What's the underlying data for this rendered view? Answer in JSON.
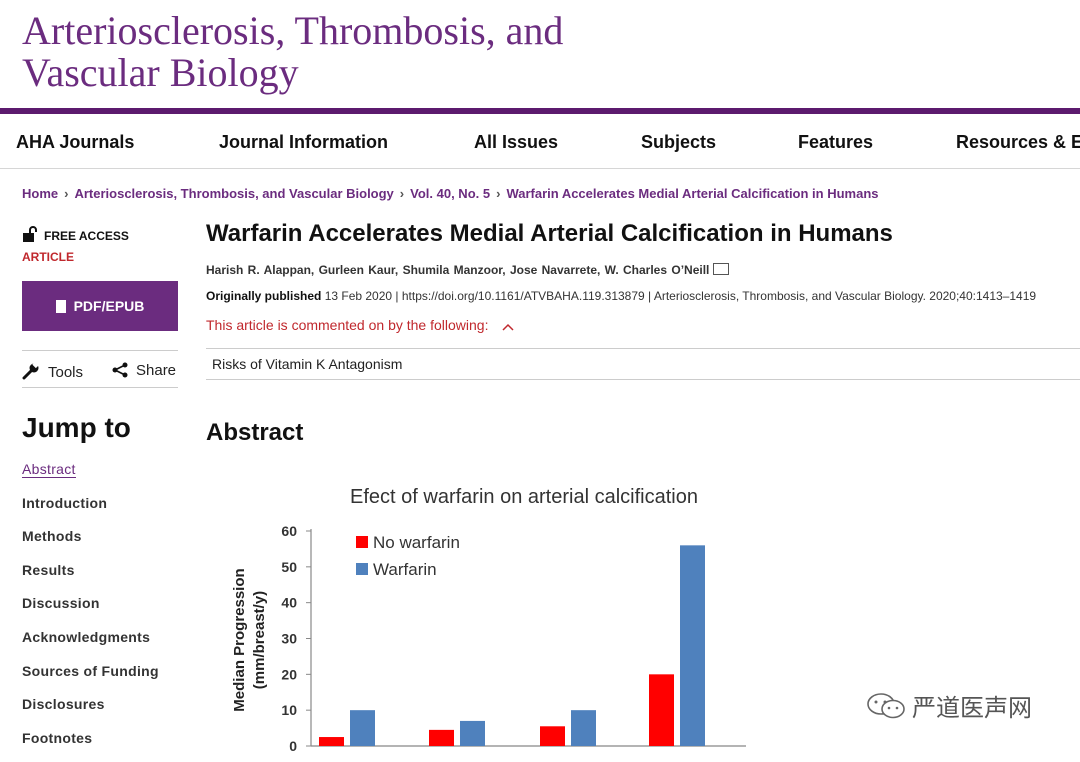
{
  "journal": {
    "title_line1": "Arteriosclerosis, Thrombosis, and",
    "title_line2": "Vascular Biology",
    "brand_color": "#6b2c7f"
  },
  "nav": [
    "AHA Journals",
    "Journal Information",
    "All Issues",
    "Subjects",
    "Features",
    "Resources & E"
  ],
  "breadcrumb": {
    "home": "Home",
    "journal": "Arteriosclerosis, Thrombosis, and Vascular Biology",
    "issue": "Vol. 40, No. 5",
    "article": "Warfarin Accelerates Medial Arterial Calcification in Humans"
  },
  "sidebar": {
    "access": "FREE ACCESS",
    "type": "ARTICLE",
    "pdf_label": "PDF/EPUB",
    "tools_label": "Tools",
    "share_label": "Share",
    "jump_title": "Jump to",
    "jump_items": [
      "Abstract",
      "Introduction",
      "Methods",
      "Results",
      "Discussion",
      "Acknowledgments",
      "Sources of Funding",
      "Disclosures",
      "Footnotes"
    ]
  },
  "article": {
    "title": "Warfarin Accelerates Medial Arterial Calcification in Humans",
    "authors": "Harish R. Alappan, Gurleen Kaur, Shumila Manzoor, Jose Navarrete, W. Charles O’Neill",
    "published_label": "Originally published",
    "published_rest": " 13 Feb 2020 | https://doi.org/10.1161/ATVBAHA.119.313879 | Arteriosclerosis, Thrombosis, and Vascular Biology. 2020;40:1413–1419",
    "comment_text": "This article is commented on by the following:",
    "comment_item": "Risks of Vitamin K Antagonism",
    "abstract_heading": "Abstract"
  },
  "chart_data": {
    "type": "bar",
    "title": "Efect of warfarin on arterial calcification",
    "ylabel": "Median Progression (mm/breast/y)",
    "ylabel_line1": "Median Progression",
    "ylabel_line2": "(mm/breast/y)",
    "xlabel": "",
    "ylim": [
      0,
      60
    ],
    "yticks": [
      0,
      10,
      20,
      30,
      40,
      50,
      60
    ],
    "categories": [
      "",
      "",
      "",
      ""
    ],
    "series": [
      {
        "name": "No warfarin",
        "color": "#ff0000",
        "values": [
          2.5,
          4.5,
          5.5,
          20
        ]
      },
      {
        "name": "Warfarin",
        "color": "#4f81bd",
        "values": [
          10,
          7,
          10,
          56
        ]
      }
    ],
    "legend": "top-left",
    "grid": false
  },
  "watermark": "严道医声网"
}
